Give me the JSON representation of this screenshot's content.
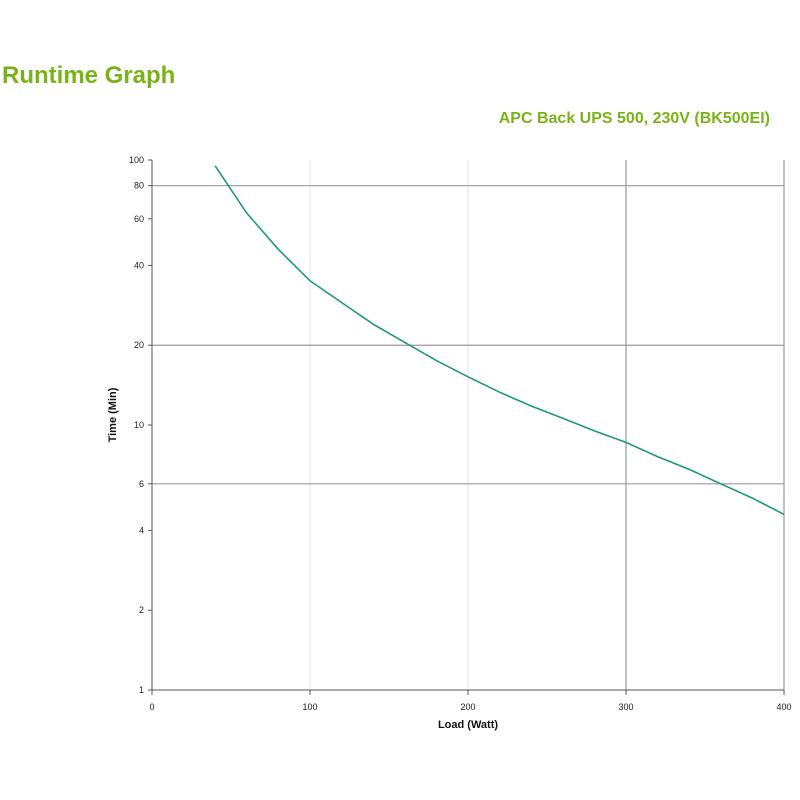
{
  "page_title": "Runtime Graph",
  "colors": {
    "title": "#7ab317",
    "curve": "#1f9a6e",
    "grid_major": "#9a9a9a",
    "grid_minor": "#e3e3e3",
    "axis": "#555555"
  },
  "chart_data": {
    "type": "line",
    "title": "APC Back UPS 500, 230V (BK500EI)",
    "xlabel": "Load (Watt)",
    "ylabel": "Time (Min)",
    "xlim": [
      0,
      400
    ],
    "ylim": [
      1,
      100
    ],
    "yscale": "log",
    "grid": true,
    "x_ticks": [
      "0",
      "100",
      "200",
      "300",
      "400"
    ],
    "y_ticks": [
      {
        "value": 1,
        "label": "1"
      },
      {
        "value": 2,
        "label": "2"
      },
      {
        "value": 4,
        "label": "4"
      },
      {
        "value": 6,
        "label": "6"
      },
      {
        "value": 10,
        "label": "10"
      },
      {
        "value": 20,
        "label": "20"
      },
      {
        "value": 40,
        "label": "40"
      },
      {
        "value": 60,
        "label": "60"
      },
      {
        "value": 80,
        "label": "80"
      },
      {
        "value": 100,
        "label": "100"
      }
    ],
    "series": [
      {
        "x": [
          40,
          60,
          80,
          100,
          120,
          140,
          160,
          180,
          200,
          220,
          240,
          260,
          280,
          300,
          320,
          340,
          360,
          380,
          400
        ],
        "y": [
          95,
          63,
          46,
          35,
          29,
          24,
          20.5,
          17.5,
          15.2,
          13.3,
          11.8,
          10.6,
          9.5,
          8.6,
          7.6,
          6.8,
          6.0,
          5.3,
          4.6
        ]
      }
    ]
  }
}
